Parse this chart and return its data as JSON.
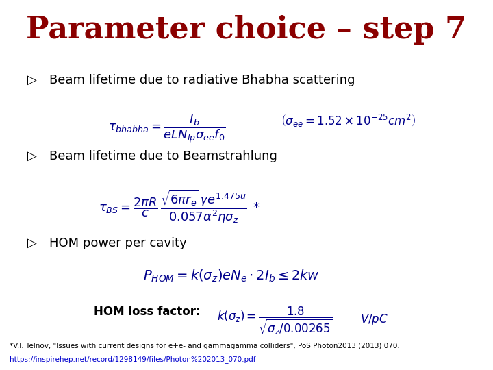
{
  "title": "Parameter choice – step 7",
  "title_color": "#8B0000",
  "title_fontsize": 32,
  "bg_color": "#ffffff",
  "bullet_color": "#000000",
  "bullet1": "Beam lifetime due to radiative Bhabha scattering",
  "bullet2": "Beam lifetime due to Beamstrahlung",
  "bullet3": "HOM power per cavity",
  "eq1": "$\\tau_{bhabha} = \\dfrac{I_b}{eLN_{lp}\\sigma_{ee}f_0}$",
  "eq1b": "$\\left(\\sigma_{ee} = 1.52\\times10^{-25}cm^2\\right)$",
  "eq2": "$\\tau_{BS} = \\dfrac{2\\pi R}{c}\\,\\dfrac{\\sqrt{6\\pi r_e}\\,\\gamma e^{1.475u}}{0.057\\alpha^2\\eta\\sigma_z}\\;*$",
  "eq3": "$P_{HOM} = k(\\sigma_z)eN_e \\cdot 2I_b \\leq 2kw$",
  "hom_label": "HOM loss factor:",
  "eq4": "$k(\\sigma_z) = \\dfrac{1.8}{\\sqrt{\\sigma_z/0.00265}}$",
  "eq4b": "$V/pC$",
  "footnote1": "*V.I. Telnov, \"Issues with current designs for e+e- and gammagamma colliders\", PoS Photon2013 (2013) 070.",
  "footnote2": "https://inspirehep.net/record/1298149/files/Photon%202013_070.pdf",
  "formula_color": "#00008B",
  "text_color": "#000000",
  "footnote_color": "#000000",
  "link_color": "#0000CD"
}
